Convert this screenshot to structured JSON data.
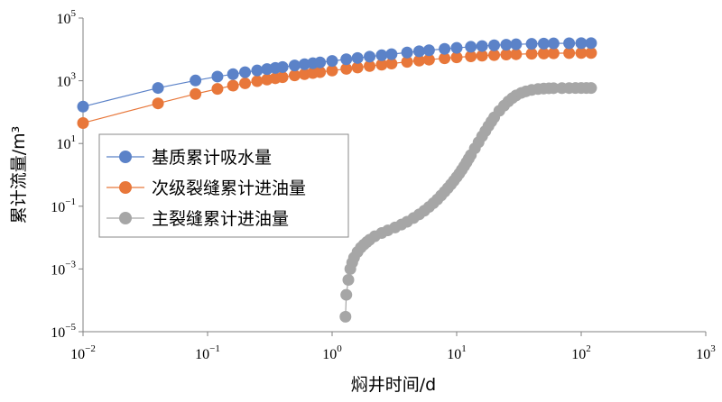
{
  "chart_data": {
    "type": "scatter",
    "xscale": "log",
    "yscale": "log",
    "xlim": [
      0.01,
      1000
    ],
    "ylim": [
      1e-05,
      100000
    ],
    "xlabel": "焖井时间/d",
    "ylabel": "累计流量/m³",
    "x_ticks": [
      {
        "base": "10",
        "exp": "−2",
        "value": 0.01
      },
      {
        "base": "10",
        "exp": "−1",
        "value": 0.1
      },
      {
        "base": "10",
        "exp": "0",
        "value": 1
      },
      {
        "base": "10",
        "exp": "1",
        "value": 10
      },
      {
        "base": "10",
        "exp": "2",
        "value": 100
      },
      {
        "base": "10",
        "exp": "3",
        "value": 1000
      }
    ],
    "y_ticks": [
      {
        "base": "10",
        "exp": "−5",
        "value": 1e-05
      },
      {
        "base": "10",
        "exp": "−3",
        "value": 0.001
      },
      {
        "base": "10",
        "exp": "−1",
        "value": 0.1
      },
      {
        "base": "10",
        "exp": "1",
        "value": 10
      },
      {
        "base": "10",
        "exp": "3",
        "value": 1000
      },
      {
        "base": "10",
        "exp": "5",
        "value": 100000
      }
    ],
    "legend_position": "left-middle",
    "series": [
      {
        "name": "基质累计吸水量",
        "color": "#5b82c8",
        "x": [
          0.01,
          0.04,
          0.08,
          0.12,
          0.16,
          0.2,
          0.25,
          0.3,
          0.35,
          0.4,
          0.5,
          0.6,
          0.7,
          0.8,
          1,
          1.3,
          1.6,
          2,
          2.5,
          3,
          4,
          5,
          6,
          8,
          10,
          13,
          16,
          20,
          25,
          30,
          40,
          50,
          60,
          80,
          100,
          120
        ],
        "y": [
          150,
          590,
          1020,
          1360,
          1620,
          1870,
          2130,
          2360,
          2560,
          2740,
          3070,
          3360,
          3620,
          3860,
          4280,
          4840,
          5320,
          5880,
          6500,
          7030,
          7950,
          8720,
          9370,
          10400,
          11200,
          12100,
          12800,
          13500,
          14100,
          14500,
          15000,
          15300,
          15500,
          15700,
          15800,
          15850
        ]
      },
      {
        "name": "次级裂缝累计进油量",
        "color": "#e8773a",
        "x": [
          0.01,
          0.04,
          0.08,
          0.12,
          0.16,
          0.2,
          0.25,
          0.3,
          0.35,
          0.4,
          0.5,
          0.6,
          0.7,
          0.8,
          1,
          1.3,
          1.6,
          2,
          2.5,
          3,
          4,
          5,
          6,
          8,
          10,
          13,
          16,
          20,
          25,
          30,
          40,
          50,
          60,
          80,
          100,
          120
        ],
        "y": [
          45,
          190,
          380,
          550,
          700,
          830,
          970,
          1090,
          1200,
          1300,
          1480,
          1630,
          1770,
          1890,
          2110,
          2400,
          2650,
          2940,
          3260,
          3530,
          4000,
          4380,
          4700,
          5200,
          5580,
          6000,
          6300,
          6580,
          6830,
          7000,
          7250,
          7400,
          7500,
          7620,
          7680,
          7700
        ]
      },
      {
        "name": "主裂缝累计进油量",
        "color": "#a6a6a6",
        "x": [
          1.28,
          1.3,
          1.35,
          1.4,
          1.45,
          1.5,
          1.6,
          1.7,
          1.8,
          1.9,
          2,
          2.2,
          2.5,
          2.8,
          3.2,
          3.6,
          4,
          4.5,
          5,
          5.5,
          6,
          6.5,
          7,
          7.5,
          8,
          8.5,
          9,
          9.5,
          10,
          10.5,
          11,
          11.5,
          12,
          12.5,
          13,
          14,
          15,
          16,
          17,
          18,
          19,
          20,
          22,
          24,
          26,
          28,
          30,
          33,
          36,
          40,
          45,
          50,
          55,
          60,
          70,
          80,
          90,
          100,
          110,
          120
        ],
        "y": [
          3e-05,
          0.00015,
          0.00045,
          0.001,
          0.0016,
          0.0023,
          0.0035,
          0.0048,
          0.006,
          0.0072,
          0.0085,
          0.011,
          0.014,
          0.017,
          0.021,
          0.026,
          0.032,
          0.042,
          0.055,
          0.072,
          0.095,
          0.125,
          0.165,
          0.22,
          0.29,
          0.38,
          0.5,
          0.65,
          0.85,
          1.1,
          1.45,
          1.9,
          2.5,
          3.3,
          4.3,
          7,
          11,
          17,
          25,
          36,
          50,
          68,
          110,
          160,
          220,
          280,
          340,
          410,
          460,
          510,
          545,
          565,
          575,
          580,
          583,
          585,
          586,
          587,
          587,
          587
        ]
      }
    ]
  }
}
